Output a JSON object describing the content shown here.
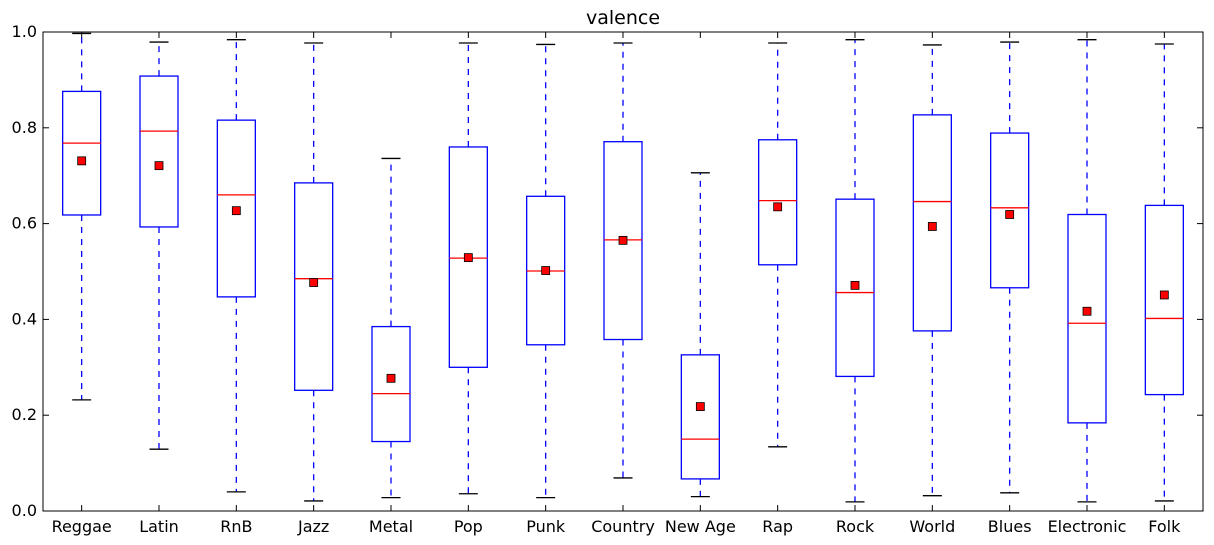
{
  "chart_data": {
    "type": "box",
    "title": "valence",
    "xlabel": "",
    "ylabel": "",
    "ylim": [
      0.0,
      1.0
    ],
    "yticks": [
      "0.0",
      "0.2",
      "0.4",
      "0.6",
      "0.8",
      "1.0"
    ],
    "grid": false,
    "colors": {
      "box": "#0000ff",
      "median": "#ff0000",
      "mean_marker": "#ff0000",
      "cap": "#000000"
    },
    "categories": [
      "Reggae",
      "Latin",
      "RnB",
      "Jazz",
      "Metal",
      "Pop",
      "Punk",
      "Country",
      "New Age",
      "Rap",
      "Rock",
      "World",
      "Blues",
      "Electronic",
      "Folk"
    ],
    "boxes": [
      {
        "category": "Reggae",
        "whisker_low": 0.232,
        "q1": 0.618,
        "median": 0.768,
        "q3": 0.876,
        "whisker_high": 0.997,
        "mean": 0.731
      },
      {
        "category": "Latin",
        "whisker_low": 0.129,
        "q1": 0.593,
        "median": 0.793,
        "q3": 0.908,
        "whisker_high": 0.979,
        "mean": 0.721
      },
      {
        "category": "RnB",
        "whisker_low": 0.04,
        "q1": 0.447,
        "median": 0.66,
        "q3": 0.816,
        "whisker_high": 0.984,
        "mean": 0.627
      },
      {
        "category": "Jazz",
        "whisker_low": 0.021,
        "q1": 0.252,
        "median": 0.485,
        "q3": 0.685,
        "whisker_high": 0.977,
        "mean": 0.477
      },
      {
        "category": "Metal",
        "whisker_low": 0.028,
        "q1": 0.145,
        "median": 0.245,
        "q3": 0.385,
        "whisker_high": 0.736,
        "mean": 0.277
      },
      {
        "category": "Pop",
        "whisker_low": 0.036,
        "q1": 0.3,
        "median": 0.528,
        "q3": 0.76,
        "whisker_high": 0.977,
        "mean": 0.529
      },
      {
        "category": "Punk",
        "whisker_low": 0.028,
        "q1": 0.347,
        "median": 0.501,
        "q3": 0.657,
        "whisker_high": 0.974,
        "mean": 0.502
      },
      {
        "category": "Country",
        "whisker_low": 0.069,
        "q1": 0.358,
        "median": 0.566,
        "q3": 0.771,
        "whisker_high": 0.977,
        "mean": 0.565
      },
      {
        "category": "New Age",
        "whisker_low": 0.03,
        "q1": 0.067,
        "median": 0.15,
        "q3": 0.326,
        "whisker_high": 0.706,
        "mean": 0.218
      },
      {
        "category": "Rap",
        "whisker_low": 0.134,
        "q1": 0.514,
        "median": 0.648,
        "q3": 0.775,
        "whisker_high": 0.977,
        "mean": 0.635
      },
      {
        "category": "Rock",
        "whisker_low": 0.019,
        "q1": 0.281,
        "median": 0.456,
        "q3": 0.651,
        "whisker_high": 0.984,
        "mean": 0.471
      },
      {
        "category": "World",
        "whisker_low": 0.032,
        "q1": 0.376,
        "median": 0.646,
        "q3": 0.827,
        "whisker_high": 0.973,
        "mean": 0.594
      },
      {
        "category": "Blues",
        "whisker_low": 0.038,
        "q1": 0.466,
        "median": 0.633,
        "q3": 0.789,
        "whisker_high": 0.979,
        "mean": 0.619
      },
      {
        "category": "Electronic",
        "whisker_low": 0.019,
        "q1": 0.184,
        "median": 0.392,
        "q3": 0.619,
        "whisker_high": 0.984,
        "mean": 0.417
      },
      {
        "category": "Folk",
        "whisker_low": 0.021,
        "q1": 0.243,
        "median": 0.402,
        "q3": 0.638,
        "whisker_high": 0.975,
        "mean": 0.451
      }
    ]
  }
}
